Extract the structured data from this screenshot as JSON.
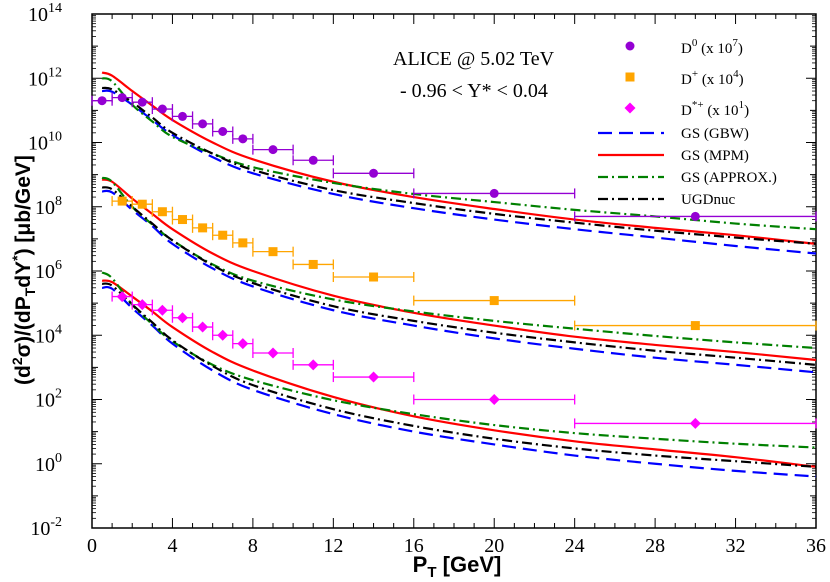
{
  "chart_data": {
    "type": "line",
    "xlabel": "P_T [GeV]",
    "ylabel": "(d^2σ)/(dP_TdY^*) [μb/GeV]",
    "xlim": [
      0,
      36
    ],
    "ylim": [
      0.01,
      100000000000000
    ],
    "y_scale": "log",
    "grid": false,
    "legend_position": "top-right",
    "x_ticks": [
      "0",
      "4",
      "8",
      "12",
      "16",
      "20",
      "24",
      "28",
      "32",
      "36"
    ],
    "y_ticks": [
      {
        "base": "10",
        "exp": "-2",
        "value": 0.01
      },
      {
        "base": "10",
        "exp": "0",
        "value": 1
      },
      {
        "base": "10",
        "exp": "2",
        "value": 100
      },
      {
        "base": "10",
        "exp": "4",
        "value": 10000
      },
      {
        "base": "10",
        "exp": "6",
        "value": 1000000
      },
      {
        "base": "10",
        "exp": "8",
        "value": 100000000
      },
      {
        "base": "10",
        "exp": "10",
        "value": 10000000000
      },
      {
        "base": "10",
        "exp": "12",
        "value": 1000000000000
      },
      {
        "base": "10",
        "exp": "14",
        "value": 100000000000000
      }
    ],
    "annotations": [
      "ALICE @ 5.02 TeV",
      "- 0.96 < Y* < 0.04"
    ],
    "data_series": [
      {
        "name": "D0 (x 10^7)",
        "legend_main": "D",
        "legend_sup": "0",
        "legend_rest": " (x 10",
        "legend_exp": "7",
        "legend_close": ")",
        "color": "#9400d3",
        "marker": "circle",
        "points": [
          {
            "x": 0.5,
            "y": 200000000000,
            "xlo": 0,
            "xhi": 1
          },
          {
            "x": 1.5,
            "y": 250000000000,
            "xlo": 1,
            "xhi": 2
          },
          {
            "x": 2.5,
            "y": 180000000000,
            "xlo": 2,
            "xhi": 3
          },
          {
            "x": 3.5,
            "y": 110000000000,
            "xlo": 3,
            "xhi": 4
          },
          {
            "x": 4.5,
            "y": 65000000000,
            "xlo": 4,
            "xhi": 5
          },
          {
            "x": 5.5,
            "y": 38000000000,
            "xlo": 5,
            "xhi": 6
          },
          {
            "x": 6.5,
            "y": 22000000000,
            "xlo": 6,
            "xhi": 7
          },
          {
            "x": 7.5,
            "y": 13000000000,
            "xlo": 7,
            "xhi": 8
          },
          {
            "x": 9,
            "y": 6000000000,
            "xlo": 8,
            "xhi": 10
          },
          {
            "x": 11,
            "y": 2800000000,
            "xlo": 10,
            "xhi": 12
          },
          {
            "x": 14,
            "y": 1100000000,
            "xlo": 12,
            "xhi": 16
          },
          {
            "x": 20,
            "y": 260000000,
            "xlo": 16,
            "xhi": 24
          },
          {
            "x": 30,
            "y": 50000000,
            "xlo": 24,
            "xhi": 36
          }
        ]
      },
      {
        "name": "D+ (x 10^4)",
        "legend_main": "D",
        "legend_sup": "+",
        "legend_rest": " (x 10",
        "legend_exp": "4",
        "legend_close": ")",
        "color": "#ffa500",
        "marker": "square",
        "points": [
          {
            "x": 1.5,
            "y": 150000000,
            "xlo": 1,
            "xhi": 2
          },
          {
            "x": 2.5,
            "y": 120000000,
            "xlo": 2,
            "xhi": 3
          },
          {
            "x": 3.5,
            "y": 70000000,
            "xlo": 3,
            "xhi": 4
          },
          {
            "x": 4.5,
            "y": 40000000,
            "xlo": 4,
            "xhi": 5
          },
          {
            "x": 5.5,
            "y": 22000000,
            "xlo": 5,
            "xhi": 6
          },
          {
            "x": 6.5,
            "y": 13000000,
            "xlo": 6,
            "xhi": 7
          },
          {
            "x": 7.5,
            "y": 7500000,
            "xlo": 7,
            "xhi": 8
          },
          {
            "x": 9,
            "y": 4000000,
            "xlo": 8,
            "xhi": 10
          },
          {
            "x": 11,
            "y": 1600000,
            "xlo": 10,
            "xhi": 12
          },
          {
            "x": 14,
            "y": 650000,
            "xlo": 12,
            "xhi": 16
          },
          {
            "x": 20,
            "y": 120000,
            "xlo": 16,
            "xhi": 24
          },
          {
            "x": 30,
            "y": 20000,
            "xlo": 24,
            "xhi": 36
          }
        ]
      },
      {
        "name": "D*+ (x 10^1)",
        "legend_main": "D",
        "legend_sup": "*+",
        "legend_rest": " (x 10",
        "legend_exp": "1",
        "legend_close": ")",
        "color": "#ff00ff",
        "marker": "diamond",
        "points": [
          {
            "x": 1.5,
            "y": 160000,
            "xlo": 1,
            "xhi": 2
          },
          {
            "x": 2.5,
            "y": 90000,
            "xlo": 2,
            "xhi": 3
          },
          {
            "x": 3.5,
            "y": 60000,
            "xlo": 3,
            "xhi": 4
          },
          {
            "x": 4.5,
            "y": 35000,
            "xlo": 4,
            "xhi": 5
          },
          {
            "x": 5.5,
            "y": 18000,
            "xlo": 5,
            "xhi": 6
          },
          {
            "x": 6.5,
            "y": 10000,
            "xlo": 6,
            "xhi": 7
          },
          {
            "x": 7.5,
            "y": 5500,
            "xlo": 7,
            "xhi": 8
          },
          {
            "x": 9,
            "y": 2800,
            "xlo": 8,
            "xhi": 10
          },
          {
            "x": 11,
            "y": 1200,
            "xlo": 10,
            "xhi": 12
          },
          {
            "x": 14,
            "y": 500,
            "xlo": 12,
            "xhi": 16
          },
          {
            "x": 20,
            "y": 100,
            "xlo": 16,
            "xhi": 24
          },
          {
            "x": 30,
            "y": 18,
            "xlo": 24,
            "xhi": 36
          }
        ]
      }
    ],
    "curve_x": [
      0.5,
      1,
      2,
      3,
      4,
      6,
      8,
      12,
      16,
      20,
      24,
      28,
      32,
      36
    ],
    "curves": [
      {
        "name": "GS (GBW)",
        "color": "#0000ff",
        "dash": "14 7",
        "groups": [
          [
            400000000000,
            380000000000,
            150000000000,
            50000000000,
            17000000000,
            3500000000,
            1100000000,
            250000000,
            90000000,
            40000000,
            20000000,
            11000000,
            6000000,
            3500000
          ],
          [
            300000000,
            280000000,
            80000000,
            25000000,
            7000000,
            1200000,
            330000,
            60000,
            20000,
            8000,
            3800,
            2000,
            1200,
            700
          ],
          [
            300000,
            280000,
            70000,
            20000,
            5500,
            800,
            200,
            35,
            10,
            4,
            1.8,
            1,
            0.6,
            0.4
          ]
        ]
      },
      {
        "name": "GS (MPM)",
        "color": "#ff0000",
        "dash": "",
        "groups": [
          [
            1500000000000,
            1200000000000,
            400000000000,
            140000000000,
            50000000000,
            10000000000,
            3000000000,
            600000000,
            200000000,
            85000000,
            40000000,
            22000000,
            13000000,
            7000000
          ],
          [
            700000000,
            600000000,
            180000000,
            60000000,
            20000000,
            3500000,
            1000000,
            170000,
            50000,
            20000,
            9000,
            5000,
            3000,
            1700
          ],
          [
            500000,
            450000,
            160000,
            55000,
            18000,
            3000,
            800,
            120,
            30,
            11,
            5,
            2.8,
            1.6,
            0.8
          ]
        ]
      },
      {
        "name": "GS (APPROX.)",
        "color": "#008000",
        "dash": "10 4 2 4",
        "groups": [
          [
            1000000000000,
            800000000000,
            150000000000,
            45000000000,
            15000000000,
            4500000000,
            1700000000,
            550000000,
            250000000,
            140000000,
            80000000,
            50000000,
            30000000,
            20000000
          ],
          [
            800000000,
            600000000,
            100000000,
            28000000,
            9000000,
            1600000,
            500000,
            130000,
            55000,
            28000,
            16000,
            9500,
            6000,
            4000
          ],
          [
            900000,
            600000,
            90000,
            22000,
            6500,
            1200,
            400,
            95,
            35,
            16,
            9,
            6,
            4.2,
            3.2
          ]
        ]
      },
      {
        "name": "UGDnuc",
        "color": "#000000",
        "dash": "10 4 2 4",
        "groups": [
          [
            500000000000,
            450000000000,
            180000000000,
            60000000000,
            20000000000,
            4500000000,
            1400000000,
            330000000,
            130000000,
            60000000,
            32000000,
            18000000,
            11000000,
            7000000
          ],
          [
            400000000,
            350000000,
            100000000,
            30000000,
            9000000,
            1500000,
            420000,
            80000,
            28000,
            12000,
            6000,
            3300,
            2000,
            1200
          ],
          [
            400000,
            350000,
            90000,
            25000,
            7000,
            1100,
            280,
            50,
            15,
            6,
            3,
            1.8,
            1.2,
            0.8
          ]
        ]
      }
    ]
  }
}
